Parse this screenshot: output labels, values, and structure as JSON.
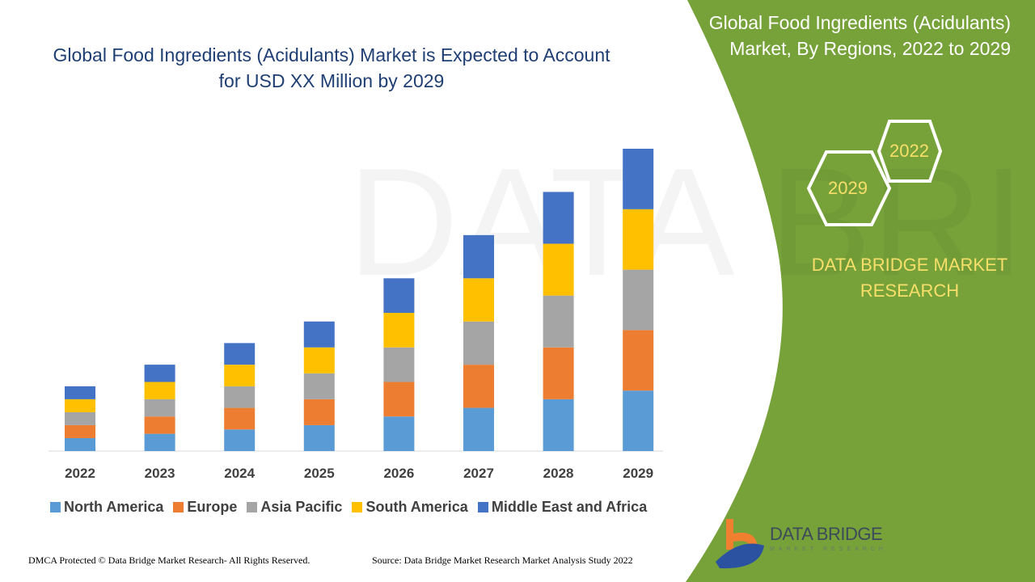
{
  "title": "Global Food Ingredients (Acidulants) Market is Expected to Account for USD XX Million by 2029",
  "side_panel": {
    "title": "Global Food Ingredients (Acidulants) Market, By Regions, 2022 to 2029",
    "hex_labels": [
      "2022",
      "2029"
    ],
    "brand": "DATA BRIDGE MARKET RESEARCH",
    "logo_text": "DATA BRIDGE",
    "logo_sub": "MARKET RESEARCH",
    "color": "#77a23a"
  },
  "footer": {
    "left": "DMCA Protected © Data Bridge Market Research- All Rights Reserved.",
    "right": "Source: Data Bridge Market Research Market Analysis Study 2022"
  },
  "chart_data": {
    "type": "bar",
    "stacked": true,
    "categories": [
      "2022",
      "2023",
      "2024",
      "2025",
      "2026",
      "2027",
      "2028",
      "2029"
    ],
    "series": [
      {
        "name": "North America",
        "color": "#5b9bd5",
        "values": [
          1.5,
          2,
          2.5,
          3,
          4,
          5,
          6,
          7
        ]
      },
      {
        "name": "Europe",
        "color": "#ed7d31",
        "values": [
          1.5,
          2,
          2.5,
          3,
          4,
          5,
          6,
          7
        ]
      },
      {
        "name": "Asia Pacific",
        "color": "#a5a5a5",
        "values": [
          1.5,
          2,
          2.5,
          3,
          4,
          5,
          6,
          7
        ]
      },
      {
        "name": "South America",
        "color": "#ffc000",
        "values": [
          1.5,
          2,
          2.5,
          3,
          4,
          5,
          6,
          7
        ]
      },
      {
        "name": "Middle East and Africa",
        "color": "#4472c4",
        "values": [
          1.5,
          2,
          2.5,
          3,
          4,
          5,
          6,
          7
        ]
      }
    ],
    "ylim": [
      0,
      35
    ],
    "grid": false,
    "legend_position": "bottom"
  }
}
